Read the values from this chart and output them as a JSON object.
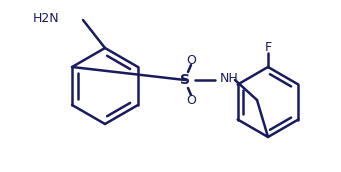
{
  "bg_color": "#ffffff",
  "line_color": "#1a1a5e",
  "line_width": 1.8,
  "font_size": 9,
  "atoms": {
    "NH2_label": "H2N",
    "NH_label": "NH",
    "S_label": "S",
    "O_top_label": "O",
    "O_bottom_label": "O",
    "F_label": "F"
  }
}
